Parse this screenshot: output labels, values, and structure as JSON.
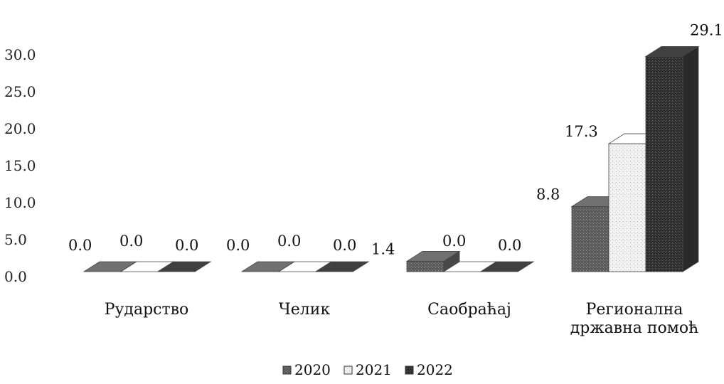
{
  "chart_data": {
    "type": "bar",
    "title": "",
    "xlabel": "",
    "ylabel": "",
    "ylim": [
      0,
      30
    ],
    "yticks": [
      "0.0",
      "5.0",
      "10.0",
      "15.0",
      "20.0",
      "25.0",
      "30.0"
    ],
    "categories": [
      [
        "Рударство"
      ],
      [
        "Челик"
      ],
      [
        "Саобраћај"
      ],
      [
        "Регионална",
        "државна помоћ"
      ]
    ],
    "series": [
      {
        "name": "2020",
        "values": [
          0.0,
          0.0,
          1.4,
          8.8
        ],
        "labels": [
          "0.0",
          "0.0",
          "1.4",
          "8.8"
        ],
        "color": "#5a5a5a"
      },
      {
        "name": "2021",
        "values": [
          0.0,
          0.0,
          0.0,
          17.3
        ],
        "labels": [
          "0.0",
          "0.0",
          "0.0",
          "17.3"
        ],
        "color": "#e6e6e6"
      },
      {
        "name": "2022",
        "values": [
          0.0,
          0.0,
          0.0,
          29.1
        ],
        "labels": [
          "0.0",
          "0.0",
          "0.0",
          "29.1"
        ],
        "color": "#333333"
      }
    ],
    "grid": false,
    "legend_position": "bottom"
  }
}
